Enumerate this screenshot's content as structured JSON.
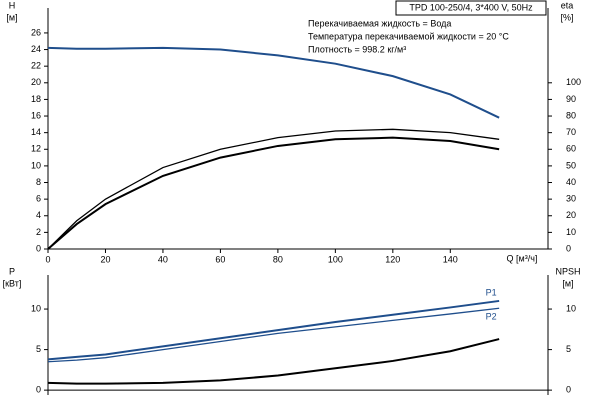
{
  "chart_data": [
    {
      "type": "line",
      "title": "TPD 100-250/4, 3*400 V, 50Hz",
      "annotations": [
        "Перекачиваемая жидкость = Вода",
        "Температура перекачиваемой жидкости = 20 °C",
        "Плотность = 998.2 кг/м³"
      ],
      "y_label": [
        "H",
        "[м]"
      ],
      "y2_label": [
        "eta",
        "[%]"
      ],
      "x_label": "Q [м³/ч]",
      "x": [
        0,
        10,
        20,
        40,
        60,
        80,
        100,
        120,
        140,
        157
      ],
      "xlim": [
        0,
        174
      ],
      "xticks": [
        0,
        20,
        40,
        60,
        80,
        100,
        120,
        140
      ],
      "ylim": [
        0,
        29
      ],
      "yticks": [
        0,
        2,
        4,
        6,
        8,
        10,
        12,
        14,
        16,
        18,
        20,
        22,
        24,
        26
      ],
      "y2lim": [
        0,
        145
      ],
      "y2ticks": [
        0,
        10,
        20,
        30,
        40,
        50,
        60,
        70,
        80,
        90,
        100
      ],
      "series": [
        {
          "color": "#1f4e8c",
          "values": [
            24.2,
            24.1,
            24.1,
            24.2,
            24.0,
            23.3,
            22.3,
            20.8,
            18.6,
            15.8
          ]
        },
        {
          "color": "#000000",
          "axis": "y2",
          "values": [
            0,
            17,
            30,
            49,
            60,
            67,
            71,
            72,
            70,
            66
          ]
        },
        {
          "color": "#000000",
          "axis": "y2",
          "values": [
            0,
            15,
            27,
            44,
            55,
            62,
            66,
            67,
            65,
            60
          ]
        }
      ]
    },
    {
      "type": "line",
      "y_label": [
        "P",
        "[кВт]"
      ],
      "y2_label": [
        "NPSH",
        "[м]"
      ],
      "x": [
        0,
        10,
        20,
        40,
        60,
        80,
        100,
        120,
        140,
        157
      ],
      "xlim": [
        0,
        174
      ],
      "ylim": [
        -0.6,
        14.2
      ],
      "yticks": [
        0,
        5,
        10
      ],
      "y2lim": [
        -0.6,
        14.2
      ],
      "y2ticks": [
        0,
        5,
        10
      ],
      "series": [
        {
          "name": "P1",
          "color": "#1f4e8c",
          "values": [
            3.8,
            4.1,
            4.4,
            5.4,
            6.4,
            7.4,
            8.4,
            9.3,
            10.2,
            11.0
          ]
        },
        {
          "name": "P2",
          "color": "#1f4e8c",
          "values": [
            3.5,
            3.7,
            4.0,
            5.0,
            6.0,
            7.0,
            7.8,
            8.6,
            9.4,
            10.1
          ]
        },
        {
          "color": "#000000",
          "axis": "y2",
          "values": [
            0.9,
            0.8,
            0.8,
            0.9,
            1.2,
            1.8,
            2.7,
            3.6,
            4.8,
            6.3
          ]
        }
      ]
    }
  ]
}
